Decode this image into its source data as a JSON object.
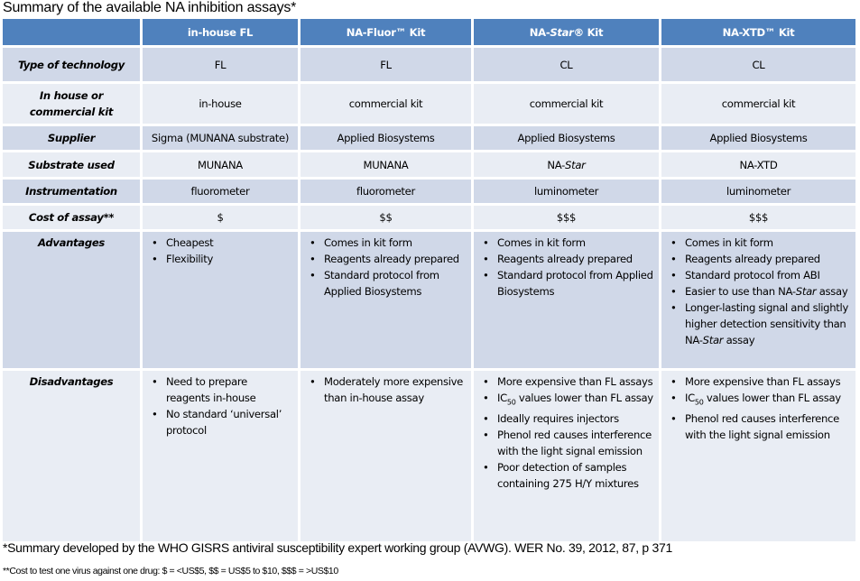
{
  "title": "Summary of the available NA inhibition assays*",
  "columns": [
    "",
    "in-house FL",
    "NA-Fluor™ Kit",
    "NA-Star® Kit",
    "NA-XTD™ Kit"
  ],
  "rows": [
    {
      "label": "Type of technology",
      "cells": [
        "FL",
        "FL",
        "CL",
        "CL"
      ]
    },
    {
      "label": "In house or commercial kit",
      "cells": [
        "in-house",
        "commercial kit",
        "commercial kit",
        "commercial kit"
      ]
    },
    {
      "label": "Supplier",
      "cells": [
        "Sigma (MUNANA substrate)",
        "Applied Biosystems",
        "Applied Biosystems",
        "Applied Biosystems"
      ]
    },
    {
      "label": "Substrate used",
      "cells": [
        "MUNANA",
        "MUNANA",
        "NA-Star",
        "NA-XTD"
      ]
    },
    {
      "label": "Instrumentation",
      "cells": [
        "fluorometer",
        "fluorometer",
        "luminometer",
        "luminometer"
      ]
    },
    {
      "label": "Cost of assay**",
      "cells": [
        "$",
        "$$",
        "$$$",
        "$$$"
      ]
    },
    {
      "label": "Advantages",
      "lists": [
        [
          "Cheapest",
          "Flexibility"
        ],
        [
          "Comes in kit form",
          "Reagents already prepared",
          "Standard protocol from Applied Biosystems"
        ],
        [
          "Comes in kit form",
          "Reagents already prepared",
          "Standard protocol from Applied Biosystems"
        ],
        [
          "Comes in kit form",
          "Reagents already prepared",
          "Standard protocol from ABI",
          "Easier to use than NA-Star assay",
          "Longer-lasting signal and slightly higher detection sensitivity than NA-Star assay"
        ]
      ]
    },
    {
      "label": "Disadvantages",
      "lists": [
        [
          "Need to prepare reagents in-house",
          "No standard ‘universal’ protocol"
        ],
        [
          "Moderately more expensive than in-house assay"
        ],
        [
          "More expensive than FL assays",
          "IC50 values lower than FL assay",
          "Ideally requires injectors",
          "Phenol red causes interference with the light signal emission",
          "Poor detection of samples containing 275 H/Y mixtures"
        ],
        [
          "More expensive than FL assays",
          "IC50 values lower than FL assay",
          "Phenol red causes interference with the light signal emission"
        ]
      ]
    }
  ],
  "footnote1": "*Summary developed by the WHO GISRS antiviral susceptibility expert working group (AVWG). WER No. 39, 2012, 87, p 371",
  "footnote2": "**Cost to test one virus against one drug: $ = <US$5, $$ = US$5 to $10, $$$ = >US$10",
  "colors": {
    "header": "#4f81bd",
    "row_dark": "#d0d8e8",
    "row_light": "#e9edf4"
  }
}
